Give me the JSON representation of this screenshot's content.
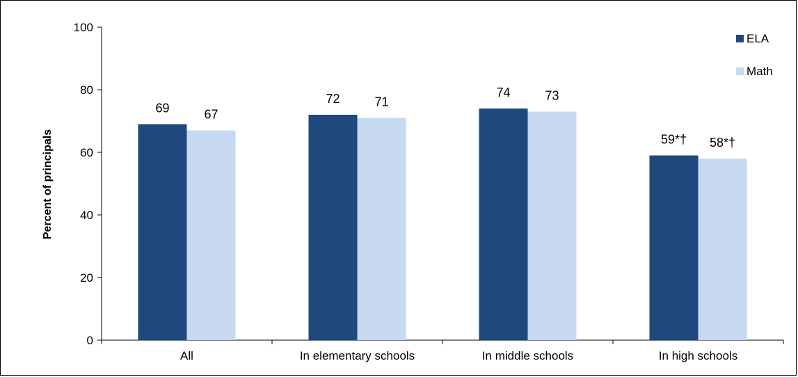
{
  "chart_data": {
    "type": "bar",
    "categories": [
      "All",
      "In elementary schools",
      "In middle schools",
      "In high schools"
    ],
    "series": [
      {
        "name": "ELA",
        "values": [
          69,
          72,
          74,
          59
        ],
        "labels": [
          "69",
          "72",
          "74",
          "59*†"
        ],
        "color": "#1f497d"
      },
      {
        "name": "Math",
        "values": [
          67,
          71,
          73,
          58
        ],
        "labels": [
          "67",
          "71",
          "73",
          "58*†"
        ],
        "color": "#c6d9f1"
      }
    ],
    "ylabel": "Percent of principals",
    "ylim": [
      0,
      100
    ],
    "yticks": [
      0,
      20,
      40,
      60,
      80,
      100
    ],
    "grid": false,
    "legend_position": "top-right"
  }
}
